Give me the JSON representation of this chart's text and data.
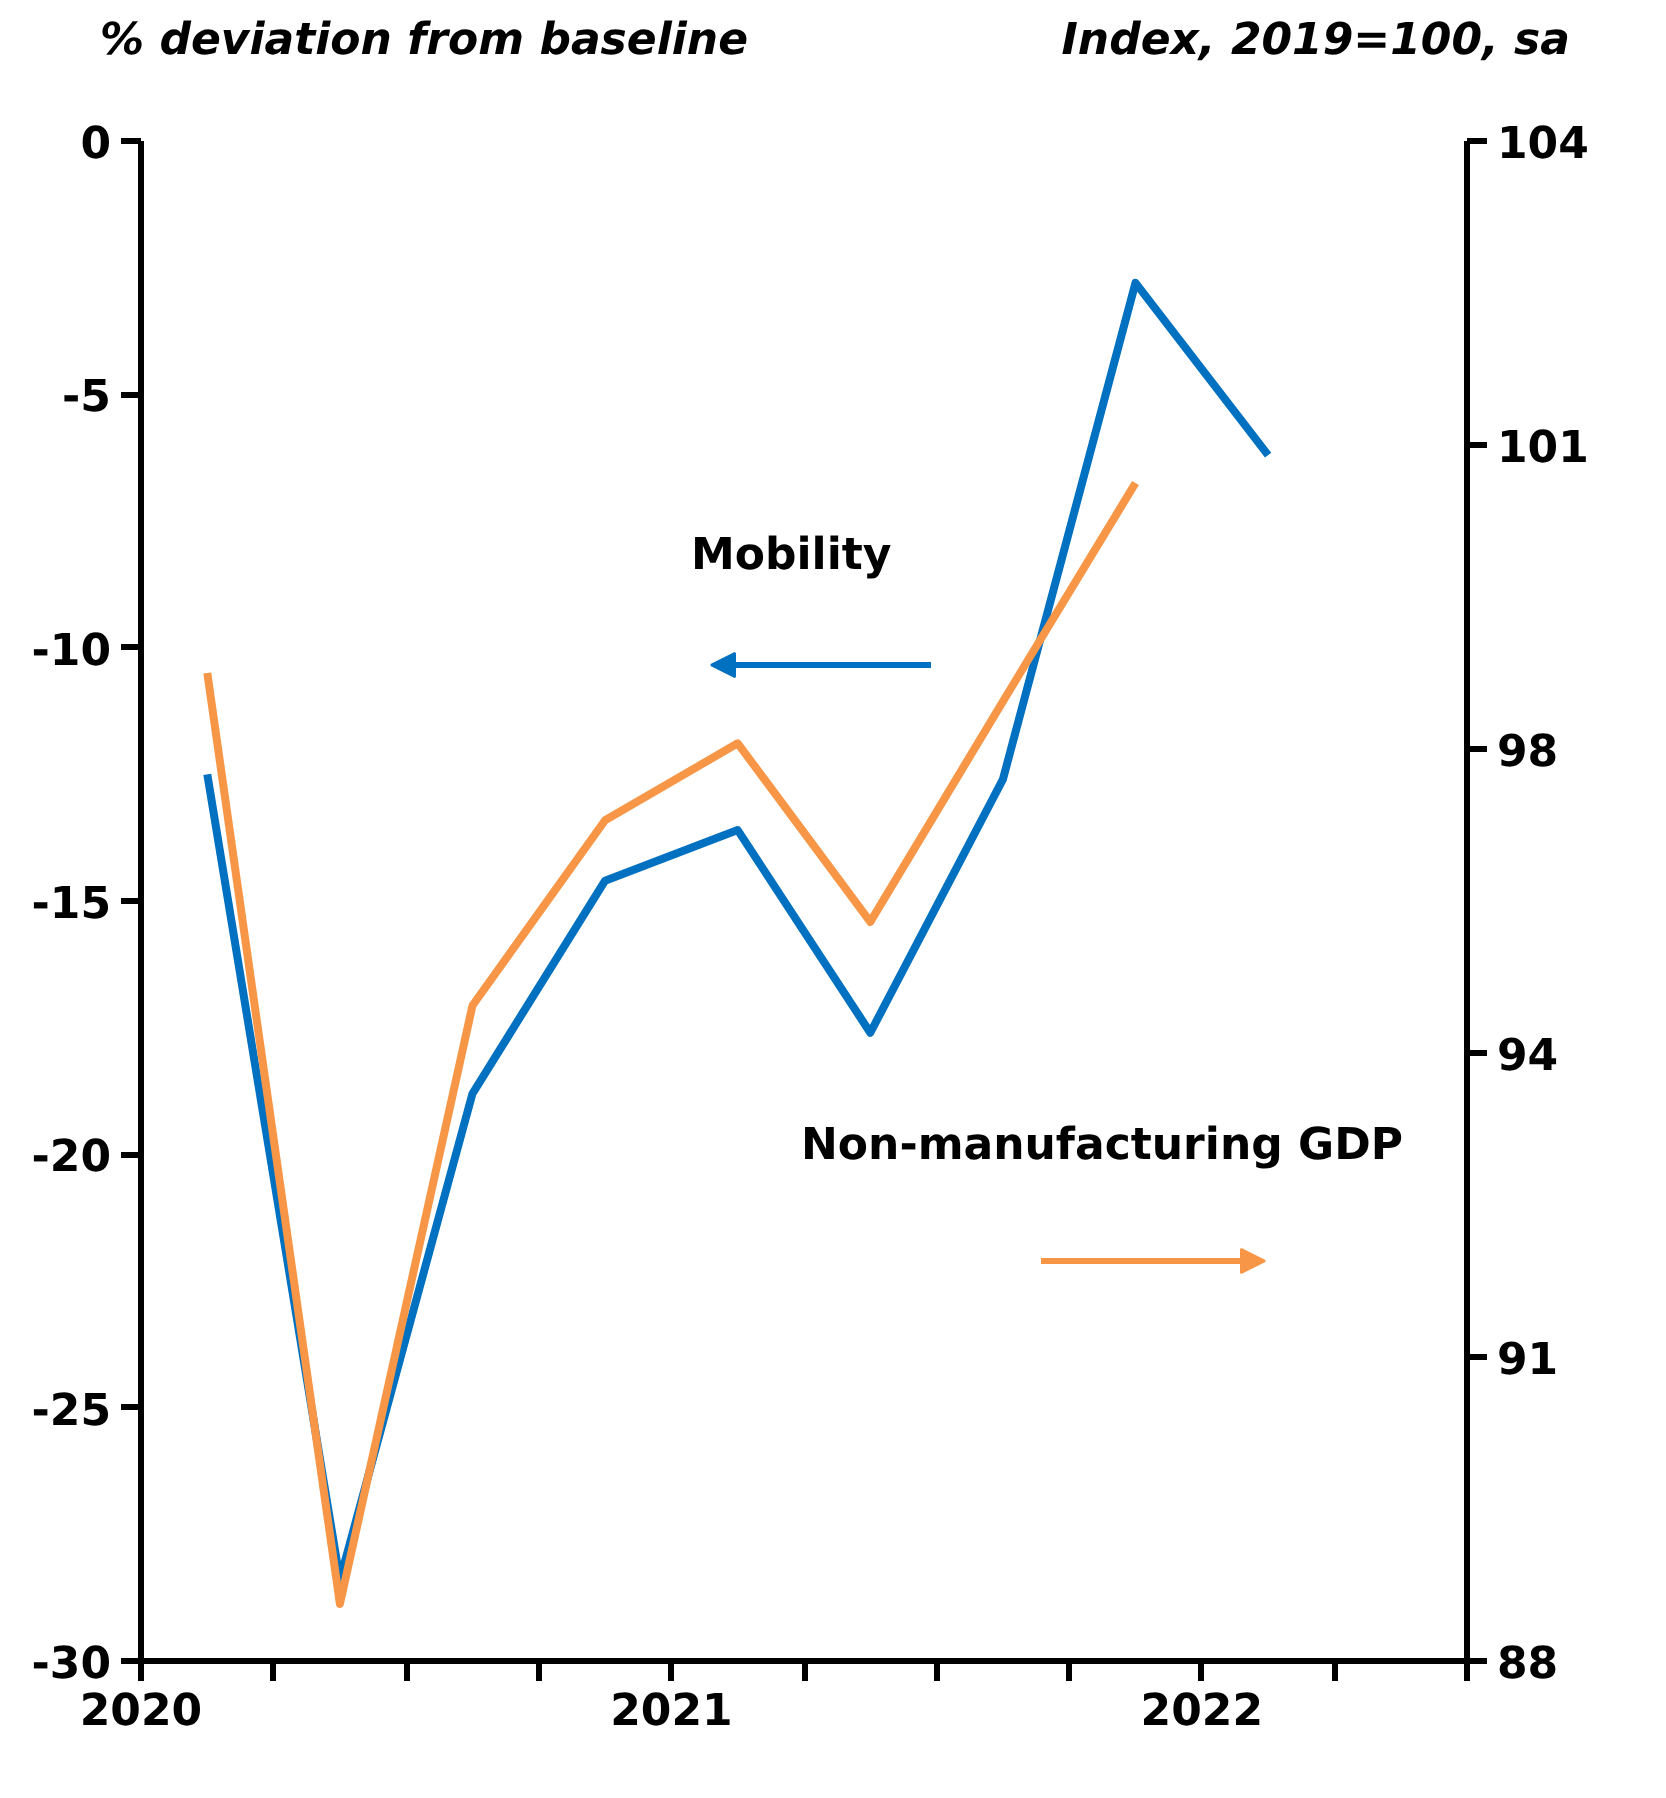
{
  "chart_data": {
    "type": "line",
    "ylabel": "% deviation from baseline",
    "y2label": "Index, 2019=100, sa",
    "xlim": [
      2020,
      2022.5
    ],
    "xticks": [
      2020,
      {
        "value": 2020.25,
        "label": null
      },
      {
        "value": 2020.5,
        "label": null
      },
      {
        "value": 2020.75,
        "label": null
      },
      2021,
      {
        "value": 2021.25,
        "label": null
      },
      {
        "value": 2021.5,
        "label": null
      },
      {
        "value": 2021.75,
        "label": null
      },
      2022,
      {
        "value": 2022.25,
        "label": null
      },
      {
        "value": 2022.5,
        "label": null
      }
    ],
    "ylim": [
      -30,
      0
    ],
    "yticks": [
      -30,
      -25,
      -20,
      -15,
      -10,
      -5,
      0
    ],
    "y2lim": [
      88,
      104
    ],
    "y2ticks": [
      88,
      {
        "value": 91.2,
        "label": "91"
      },
      {
        "value": 94.4,
        "label": "94"
      },
      {
        "value": 97.6,
        "label": "98"
      },
      {
        "value": 100.8,
        "label": "101"
      },
      104
    ],
    "grid": false,
    "line_style": "solid",
    "marker": "none",
    "annotations": [
      "Mobility",
      "Non-manufacturing GDP"
    ],
    "series": [
      {
        "color": "#0070c0",
        "x": [
          2020.125,
          2020.375,
          2020.625,
          2020.875,
          2021.125,
          2021.375,
          2021.625,
          2021.875,
          2022.125
        ],
        "values": [
          -12.5,
          -28.4,
          -18.8,
          -14.6,
          -13.6,
          -17.6,
          -12.6,
          -2.8,
          -6.2
        ]
      },
      {
        "color": "#f79646",
        "axis": "y2",
        "x": [
          2020.125,
          2020.375,
          2020.625,
          2020.875,
          2021.125,
          2021.375,
          2021.625,
          2021.875
        ],
        "values": [
          98.4,
          88.6,
          94.9,
          96.85,
          97.66,
          95.78,
          98.1,
          100.4
        ]
      }
    ]
  }
}
